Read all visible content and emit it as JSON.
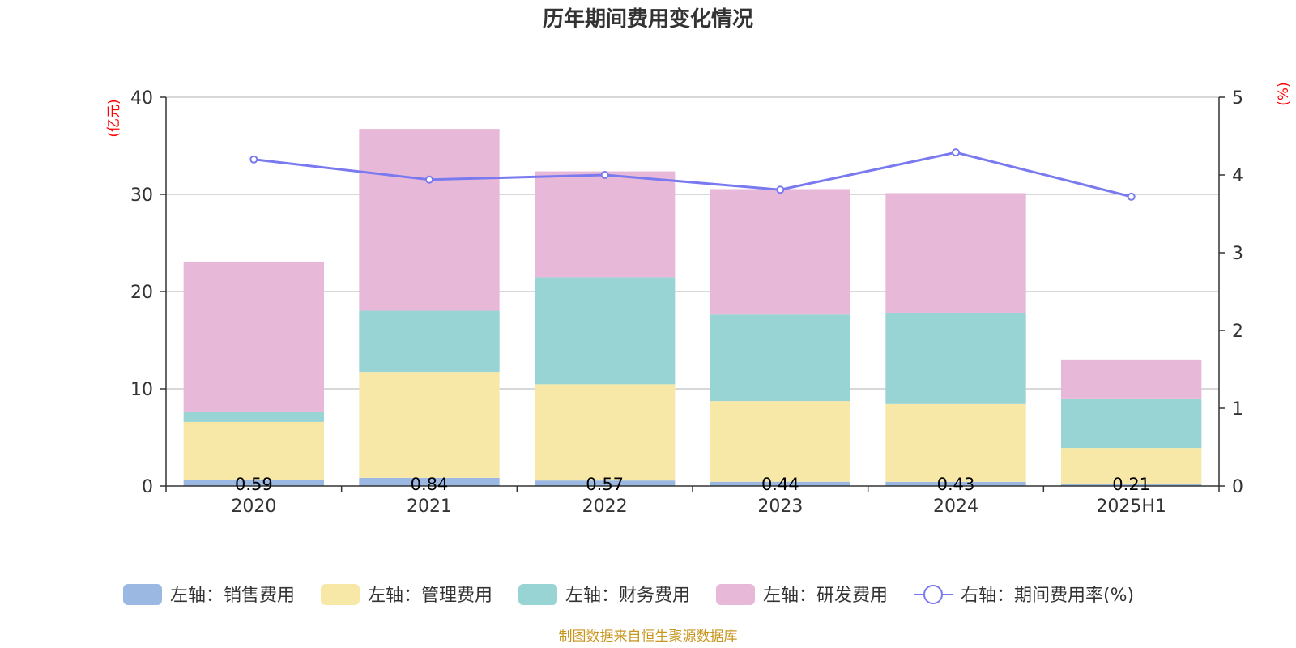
{
  "chart_data": {
    "type": "bar",
    "title": "历年期间费用变化情况",
    "categories": [
      "2020",
      "2021",
      "2022",
      "2023",
      "2024",
      "2025H1"
    ],
    "left_axis": {
      "unit": "(亿元)",
      "min": 0,
      "max": 40,
      "ticks": [
        0,
        10,
        20,
        30,
        40
      ]
    },
    "right_axis": {
      "unit": "(%)",
      "min": 0,
      "max": 5,
      "ticks": [
        0,
        1,
        2,
        3,
        4,
        5
      ]
    },
    "grid": true,
    "stacked": true,
    "series": [
      {
        "name": "左轴：销售费用",
        "axis": "left",
        "kind": "bar",
        "color": "#9bb8e3",
        "values": [
          0.59,
          0.84,
          0.57,
          0.44,
          0.43,
          0.21
        ],
        "labels": [
          "0.59",
          "0.84",
          "0.57",
          "0.44",
          "0.43",
          "0.21"
        ]
      },
      {
        "name": "左轴：管理费用",
        "axis": "left",
        "kind": "bar",
        "color": "#f8e8a8",
        "values": [
          6.0,
          10.9,
          9.9,
          8.3,
          8.0,
          3.7
        ]
      },
      {
        "name": "左轴：财务费用",
        "axis": "left",
        "kind": "bar",
        "color": "#98d4d4",
        "values": [
          1.0,
          6.3,
          11.0,
          8.9,
          9.4,
          5.1
        ]
      },
      {
        "name": "左轴：研发费用",
        "axis": "left",
        "kind": "bar",
        "color": "#e8b8d8",
        "values": [
          15.5,
          18.7,
          10.9,
          12.9,
          12.3,
          4.0
        ]
      },
      {
        "name": "右轴：期间费用率(%)",
        "axis": "right",
        "kind": "line",
        "color": "#7a7af0",
        "values": [
          4.2,
          3.94,
          4.0,
          3.81,
          4.29,
          3.72
        ]
      }
    ],
    "legend_position": "bottom"
  },
  "source_text": "制图数据来自恒生聚源数据库"
}
